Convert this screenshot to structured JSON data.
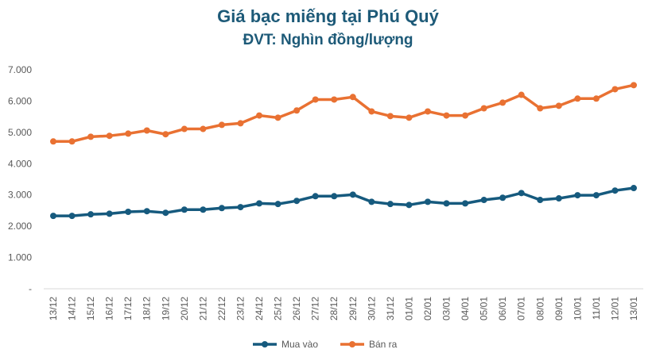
{
  "chart_data": {
    "type": "line",
    "title": "Giá bạc miếng tại Phú Quý",
    "subtitle": "ĐVT: Nghìn đồng/lượng",
    "xlabel": "",
    "ylabel": "",
    "ylim": [
      0,
      7000
    ],
    "yticks": [
      0,
      1000,
      2000,
      3000,
      4000,
      5000,
      6000,
      7000
    ],
    "ytick_labels": [
      "-",
      "1.000",
      "2.000",
      "3.000",
      "4.000",
      "5.000",
      "6.000",
      "7.000"
    ],
    "grid": false,
    "legend": "bottom",
    "categories": [
      "13/12",
      "14/12",
      "15/12",
      "16/12",
      "17/12",
      "18/12",
      "19/12",
      "20/12",
      "21/12",
      "22/12",
      "23/12",
      "24/12",
      "25/12",
      "26/12",
      "27/12",
      "28/12",
      "29/12",
      "30/12",
      "31/12",
      "01/01",
      "02/01",
      "03/01",
      "04/01",
      "05/01",
      "06/01",
      "07/01",
      "08/01",
      "09/01",
      "10/01",
      "11/01",
      "12/01",
      "13/01"
    ],
    "series": [
      {
        "name": "Mua vào",
        "color": "#165a7e",
        "values": [
          2330,
          2330,
          2380,
          2400,
          2460,
          2480,
          2430,
          2530,
          2530,
          2580,
          2610,
          2730,
          2710,
          2810,
          2960,
          2960,
          3010,
          2780,
          2710,
          2680,
          2780,
          2730,
          2730,
          2840,
          2910,
          3060,
          2840,
          2890,
          2990,
          2990,
          3140,
          3220
        ]
      },
      {
        "name": "Bán ra",
        "color": "#e97132",
        "values": [
          4710,
          4710,
          4860,
          4890,
          4960,
          5060,
          4940,
          5110,
          5110,
          5240,
          5290,
          5540,
          5470,
          5700,
          6050,
          6050,
          6130,
          5670,
          5520,
          5470,
          5670,
          5540,
          5540,
          5770,
          5950,
          6200,
          5770,
          5850,
          6080,
          6080,
          6380,
          6510
        ]
      }
    ]
  }
}
